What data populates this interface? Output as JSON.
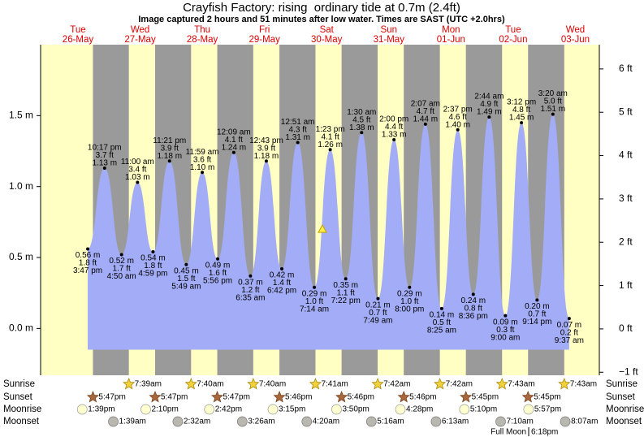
{
  "header": {
    "title": "Crayfish Factory: rising  ordinary tide at 0.7m (2.4ft)",
    "subtitle": "Image captured 2 hours and 51 minutes after low water. Times are SAST (UTC +2.0hrs)"
  },
  "chart_data": {
    "type": "tide",
    "color": "#a3acf6",
    "ylim": [
      -0.33,
      2.0
    ],
    "yticks": [
      {
        "value": 0,
        "label": "0.0 m"
      },
      {
        "value": 0.5,
        "label": "0.5 m"
      },
      {
        "value": 1,
        "label": "1.0 m"
      },
      {
        "value": 1.5,
        "label": "1.5 m"
      }
    ],
    "y2lim": [
      -1.07,
      6.56
    ],
    "y2ticks": [
      {
        "value": -1,
        "label": "−1 ft"
      },
      {
        "value": 0,
        "label": "0 ft"
      },
      {
        "value": 1,
        "label": "1 ft"
      },
      {
        "value": 2,
        "label": "2 ft"
      },
      {
        "value": 3,
        "label": "3 ft"
      },
      {
        "value": 4,
        "label": "4 ft"
      },
      {
        "value": 5,
        "label": "5 ft"
      },
      {
        "value": 6,
        "label": "6 ft"
      }
    ],
    "now": {
      "value": 0.7
    },
    "rows": {
      "sunrise": "Sunrise",
      "sunset": "Sunset",
      "moonrise": "Moonrise",
      "moonset": "Moonset"
    },
    "full_moon": {
      "label": "Full Moon",
      "time": "6:18pm"
    },
    "days": [
      {
        "dow": "Tue",
        "date": "26-May",
        "sunset": "5:47pm",
        "moonrise": "1:39pm",
        "extremes": [
          {
            "time": "3:47 pm",
            "value": 0.56,
            "value_label": "0.56 m",
            "ft": "1.8 ft"
          },
          {
            "time": "10:17 pm",
            "value": 1.13,
            "value_label": "1.13 m",
            "ft": "3.7 ft"
          }
        ]
      },
      {
        "dow": "Wed",
        "date": "27-May",
        "sunrise": "7:39am",
        "sunset": "5:47pm",
        "moonrise": "2:10pm",
        "moonset": "1:39am",
        "extremes": [
          {
            "time": "4:50 am",
            "value": 0.52,
            "value_label": "0.52 m",
            "ft": "1.7 ft"
          },
          {
            "time": "11:00 am",
            "value": 1.03,
            "value_label": "1.03 m",
            "ft": "3.4 ft"
          },
          {
            "time": "4:59 pm",
            "value": 0.54,
            "value_label": "0.54 m",
            "ft": "1.8 ft"
          },
          {
            "time": "11:21 pm",
            "value": 1.18,
            "value_label": "1.18 m",
            "ft": "3.9 ft"
          }
        ]
      },
      {
        "dow": "Thu",
        "date": "28-May",
        "sunrise": "7:40am",
        "sunset": "5:47pm",
        "moonrise": "2:42pm",
        "moonset": "2:32am",
        "extremes": [
          {
            "time": "5:49 am",
            "value": 0.45,
            "value_label": "0.45 m",
            "ft": "1.5 ft"
          },
          {
            "time": "11:59 am",
            "value": 1.1,
            "value_label": "1.10 m",
            "ft": "3.6 ft"
          },
          {
            "time": "5:56 pm",
            "value": 0.49,
            "value_label": "0.49 m",
            "ft": "1.6 ft"
          }
        ]
      },
      {
        "dow": "Fri",
        "date": "29-May",
        "sunrise": "7:40am",
        "sunset": "5:46pm",
        "moonrise": "3:15pm",
        "moonset": "3:26am",
        "extremes": [
          {
            "time": "12:09 am",
            "value": 1.24,
            "value_label": "1.24 m",
            "ft": "4.1 ft"
          },
          {
            "time": "6:35 am",
            "value": 0.37,
            "value_label": "0.37 m",
            "ft": "1.2 ft"
          },
          {
            "time": "12:43 pm",
            "value": 1.18,
            "value_label": "1.18 m",
            "ft": "3.9 ft"
          },
          {
            "time": "6:42 pm",
            "value": 0.42,
            "value_label": "0.42 m",
            "ft": "1.4 ft"
          }
        ]
      },
      {
        "dow": "Sat",
        "date": "30-May",
        "sunrise": "7:41am",
        "sunset": "5:46pm",
        "moonrise": "3:50pm",
        "moonset": "4:20am",
        "extremes": [
          {
            "time": "12:51 am",
            "value": 1.31,
            "value_label": "1.31 m",
            "ft": "4.3 ft"
          },
          {
            "time": "7:14 am",
            "value": 0.29,
            "value_label": "0.29 m",
            "ft": "1.0 ft"
          },
          {
            "time": "1:23 pm",
            "value": 1.26,
            "value_label": "1.26 m",
            "ft": "4.1 ft"
          },
          {
            "time": "7:22 pm",
            "value": 0.35,
            "value_label": "0.35 m",
            "ft": "1.1 ft"
          }
        ]
      },
      {
        "dow": "Sun",
        "date": "31-May",
        "sunrise": "7:42am",
        "sunset": "5:46pm",
        "moonrise": "4:28pm",
        "moonset": "5:16am",
        "extremes": [
          {
            "time": "1:30 am",
            "value": 1.38,
            "value_label": "1.38 m",
            "ft": "4.5 ft"
          },
          {
            "time": "7:49 am",
            "value": 0.21,
            "value_label": "0.21 m",
            "ft": "0.7 ft"
          },
          {
            "time": "2:00 pm",
            "value": 1.33,
            "value_label": "1.33 m",
            "ft": "4.4 ft"
          },
          {
            "time": "8:00 pm",
            "value": 0.29,
            "value_label": "0.29 m",
            "ft": "1.0 ft"
          }
        ]
      },
      {
        "dow": "Mon",
        "date": "01-Jun",
        "sunrise": "7:42am",
        "sunset": "5:45pm",
        "moonrise": "5:10pm",
        "moonset": "6:13am",
        "extremes": [
          {
            "time": "2:07 am",
            "value": 1.44,
            "value_label": "1.44 m",
            "ft": "4.7 ft"
          },
          {
            "time": "8:25 am",
            "value": 0.14,
            "value_label": "0.14 m",
            "ft": "0.5 ft"
          },
          {
            "time": "2:37 pm",
            "value": 1.4,
            "value_label": "1.40 m",
            "ft": "4.6 ft"
          },
          {
            "time": "8:36 pm",
            "value": 0.24,
            "value_label": "0.24 m",
            "ft": "0.8 ft"
          }
        ]
      },
      {
        "dow": "Tue",
        "date": "02-Jun",
        "sunrise": "7:43am",
        "sunset": "5:45pm",
        "moonrise": "5:57pm",
        "moonset": "7:10am",
        "extremes": [
          {
            "time": "2:44 am",
            "value": 1.49,
            "value_label": "1.49 m",
            "ft": "4.9 ft"
          },
          {
            "time": "9:00 am",
            "value": 0.09,
            "value_label": "0.09 m",
            "ft": "0.3 ft"
          },
          {
            "time": "3:12 pm",
            "value": 1.45,
            "value_label": "1.45 m",
            "ft": "4.8 ft"
          },
          {
            "time": "9:14 pm",
            "value": 0.2,
            "value_label": "0.20 m",
            "ft": "0.7 ft"
          }
        ]
      },
      {
        "dow": "Wed",
        "date": "03-Jun",
        "sunrise": "7:43am",
        "moonset": "8:07am",
        "extremes": [
          {
            "time": "3:20 am",
            "value": 1.51,
            "value_label": "1.51 m",
            "ft": "5.0 ft"
          },
          {
            "time": "9:37 am",
            "value": 0.07,
            "value_label": "0.07 m",
            "ft": "0.2 ft"
          }
        ]
      }
    ]
  }
}
